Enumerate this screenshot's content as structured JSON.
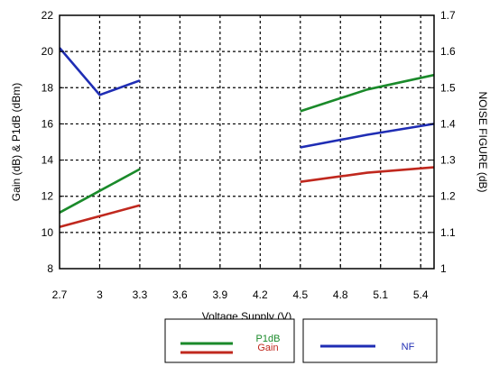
{
  "chart_data": {
    "type": "line",
    "xlabel": "Voltage Supply (V)",
    "ylabel": "Gain (dB) & P1dB (dBm)",
    "y2label": "NOISE FIGURE (dB)",
    "xlim": [
      2.7,
      5.5
    ],
    "ylim": [
      8,
      22
    ],
    "y2lim": [
      1.0,
      1.7
    ],
    "x_ticks": [
      "2.7",
      "3",
      "3.3",
      "3.6",
      "3.9",
      "4.2",
      "4.5",
      "4.8",
      "5.1",
      "5.4"
    ],
    "y_ticks": [
      "8",
      "10",
      "12",
      "14",
      "16",
      "18",
      "20",
      "22"
    ],
    "y2_ticks": [
      "1",
      "1.1",
      "1.2",
      "1.3",
      "1.4",
      "1.5",
      "1.6",
      "1.7"
    ],
    "grid": true,
    "series": [
      {
        "name": "P1dB",
        "axis": "left",
        "color": "#1a8a2a",
        "segments": [
          [
            [
              2.7,
              11.1
            ],
            [
              3.0,
              12.3
            ],
            [
              3.3,
              13.5
            ]
          ],
          [
            [
              4.5,
              16.7
            ],
            [
              5.0,
              17.9
            ],
            [
              5.5,
              18.7
            ]
          ]
        ]
      },
      {
        "name": "Gain",
        "axis": "left",
        "color": "#c0281e",
        "segments": [
          [
            [
              2.7,
              10.3
            ],
            [
              3.0,
              10.9
            ],
            [
              3.3,
              11.5
            ]
          ],
          [
            [
              4.5,
              12.8
            ],
            [
              5.0,
              13.3
            ],
            [
              5.5,
              13.6
            ]
          ]
        ]
      },
      {
        "name": "NF",
        "axis": "right",
        "color": "#1f2db4",
        "segments": [
          [
            [
              2.7,
              1.61
            ],
            [
              3.0,
              1.48
            ],
            [
              3.3,
              1.52
            ]
          ],
          [
            [
              4.5,
              1.335
            ],
            [
              5.0,
              1.37
            ],
            [
              5.5,
              1.4
            ]
          ]
        ]
      }
    ],
    "legend": {
      "placement": "bottom",
      "boxes": [
        [
          "P1dB",
          "Gain"
        ],
        [
          "NF"
        ]
      ]
    }
  }
}
